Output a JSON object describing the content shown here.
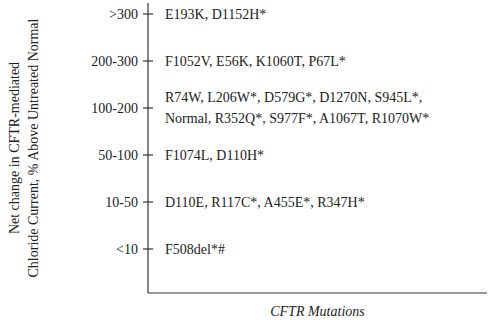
{
  "chart_data": {
    "type": "category_list",
    "y_label": [
      "Net change in CFTR-mediated",
      "Chloride Current, % Above Untreated Normal"
    ],
    "x_label": "CFTR Mutations",
    "rows": [
      {
        "label": ">300",
        "lines": [
          "E193K, D1152H*"
        ]
      },
      {
        "label": "200-300",
        "lines": [
          "F1052V, E56K, K1060T, P67L*"
        ]
      },
      {
        "label": "100-200",
        "lines": [
          "R74W, L206W*, D579G*, D1270N, S945L*,",
          "Normal, R352Q*, S977F*, A1067T, R1070W*"
        ]
      },
      {
        "label": "50-100",
        "lines": [
          "F1074L, D110H*"
        ]
      },
      {
        "label": "10-50",
        "lines": [
          "D110E, R117C*, A455E*, R347H*"
        ]
      },
      {
        "label": "<10",
        "lines": [
          "F508del*#"
        ]
      }
    ]
  }
}
